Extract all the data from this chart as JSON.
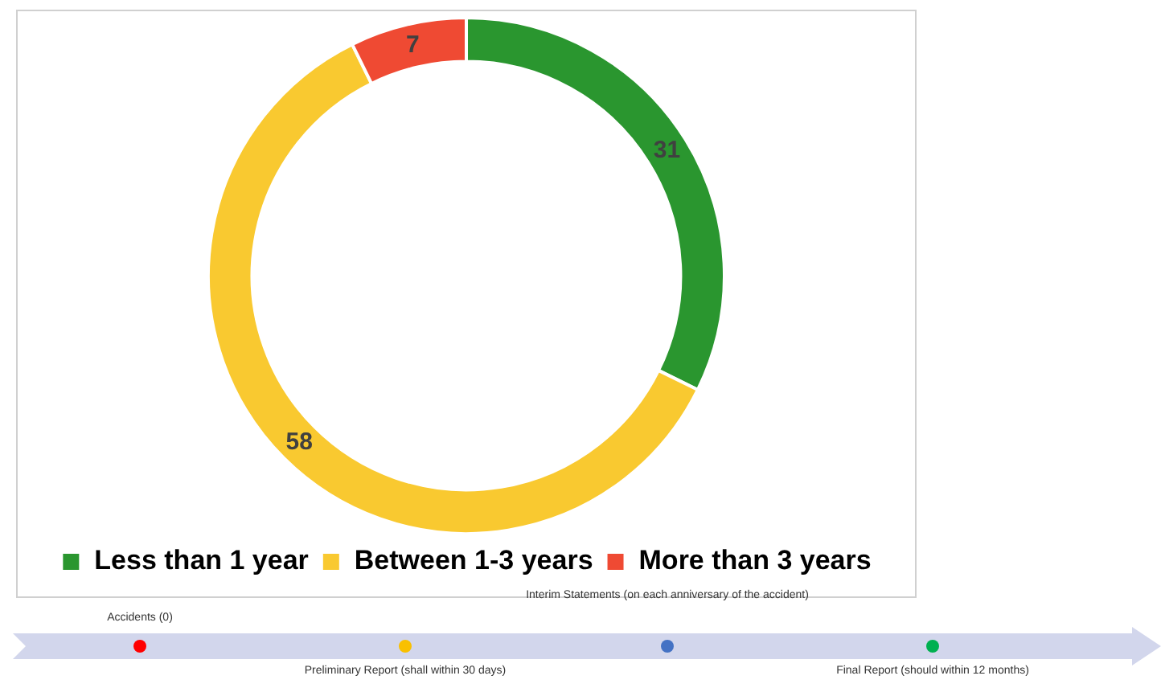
{
  "chart_data": {
    "type": "donut",
    "categories": [
      "Less than 1 year",
      "Between 1-3 years",
      "More than 3 years"
    ],
    "values": [
      31,
      58,
      7
    ],
    "colors": [
      "#2a962f",
      "#f9c930",
      "#ef4a33"
    ],
    "data_labels": true,
    "legend": "bottom",
    "annotations": [
      "Accidents (0)",
      "Preliminary Report (shall within 30 days)",
      "Interim Statements (on each anniversary of the accident)",
      "Final Report (should within 12 months)"
    ]
  }
}
